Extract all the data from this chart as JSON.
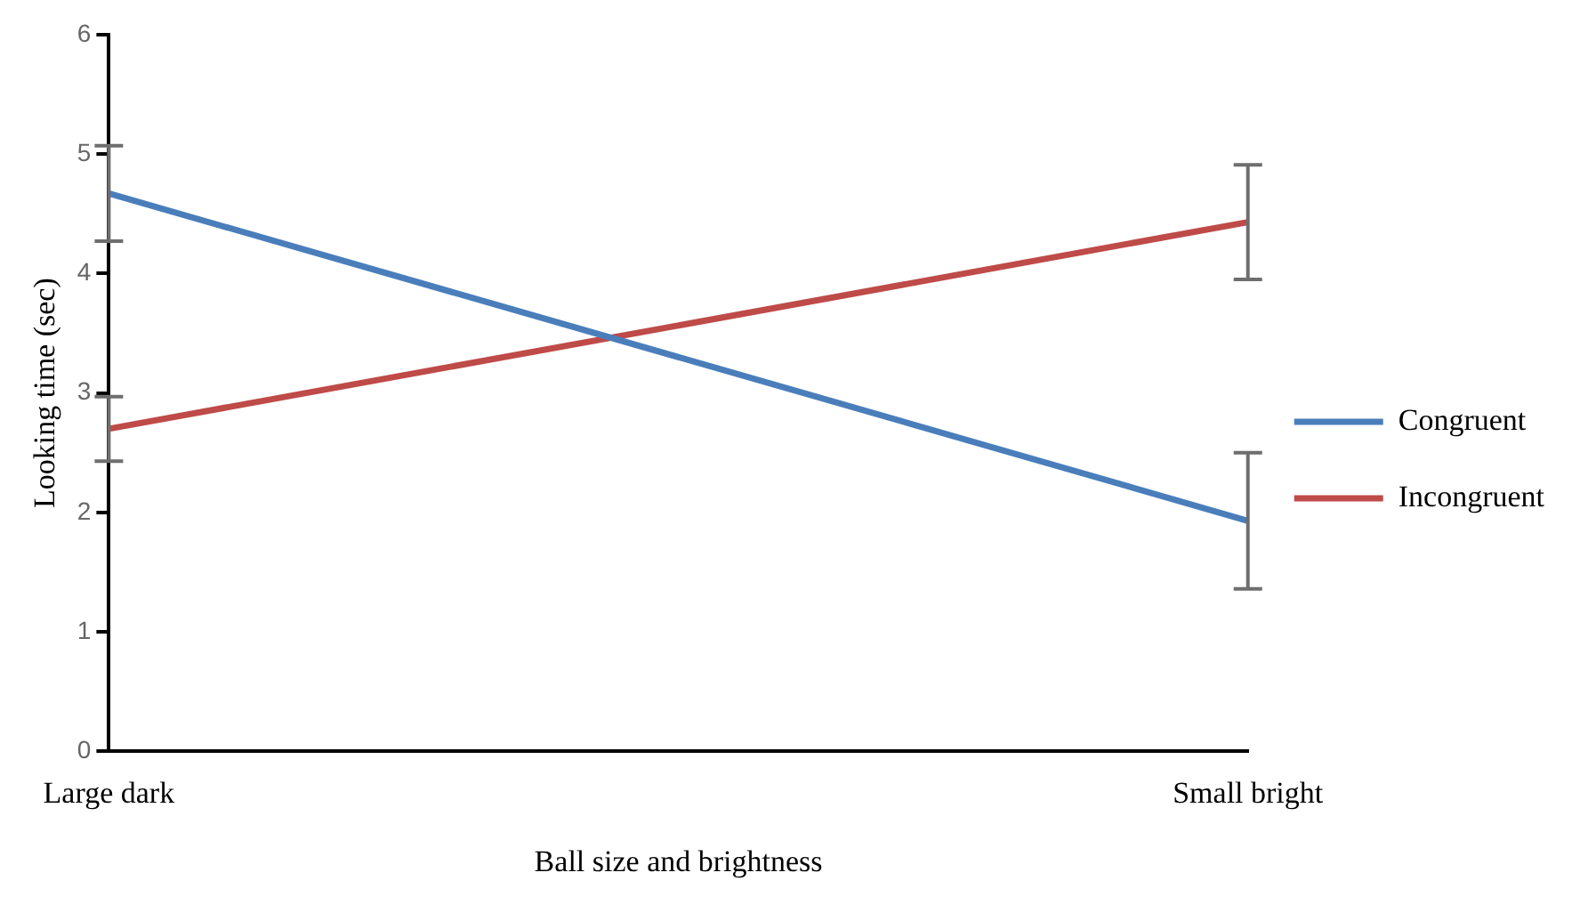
{
  "chart_data": {
    "type": "line",
    "xlabel": "Ball size and brightness",
    "ylabel": "Looking time (sec)",
    "categories": [
      "Large dark",
      "Small bright"
    ],
    "series": [
      {
        "name": "Congruent",
        "color": "#4a7ebb",
        "values": [
          4.67,
          1.93
        ],
        "errors": [
          0.4,
          0.57
        ]
      },
      {
        "name": "Incongruent",
        "color": "#be4b48",
        "values": [
          2.7,
          4.43
        ],
        "errors": [
          0.27,
          0.48
        ]
      }
    ],
    "ylim": [
      0,
      6
    ],
    "yticks": [
      0,
      1,
      2,
      3,
      4,
      5,
      6
    ],
    "grid": false,
    "legend": "right",
    "marker": "none"
  }
}
